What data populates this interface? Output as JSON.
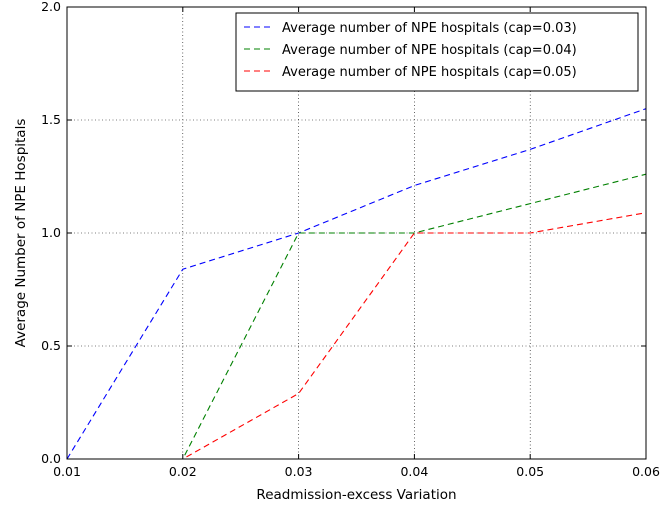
{
  "chart_data": {
    "type": "line",
    "title": "",
    "xlabel": "Readmission-excess Variation",
    "ylabel": "Average Number of NPE Hospitals",
    "xlim": [
      0.01,
      0.06
    ],
    "ylim": [
      0.0,
      2.0
    ],
    "x_ticks": [
      "0.01",
      "0.02",
      "0.03",
      "0.04",
      "0.05",
      "0.06"
    ],
    "y_ticks": [
      "0.0",
      "0.5",
      "1.0",
      "1.5",
      "2.0"
    ],
    "grid": true,
    "legend_position": "top-right",
    "x": [
      0.01,
      0.02,
      0.03,
      0.04,
      0.05,
      0.06
    ],
    "series": [
      {
        "name": "Average number of NPE hospitals (cap=0.03)",
        "color": "#0000ff",
        "style": "dashed",
        "values": [
          0.0,
          0.84,
          1.0,
          1.21,
          1.37,
          1.55
        ]
      },
      {
        "name": "Average number of NPE hospitals (cap=0.04)",
        "color": "#008000",
        "style": "dashed",
        "values": [
          0.0,
          0.0,
          1.0,
          1.0,
          1.13,
          1.26
        ]
      },
      {
        "name": "Average number of NPE hospitals (cap=0.05)",
        "color": "#ff0000",
        "style": "dashed",
        "values": [
          0.0,
          0.0,
          0.29,
          1.0,
          1.0,
          1.09
        ]
      }
    ]
  }
}
